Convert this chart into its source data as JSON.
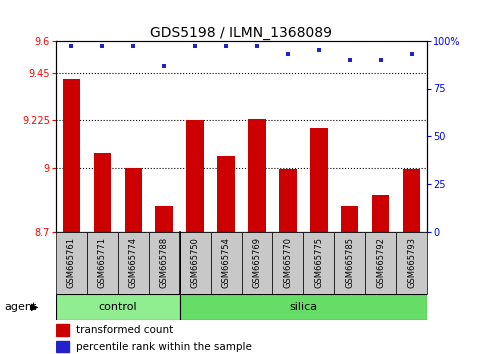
{
  "title": "GDS5198 / ILMN_1368089",
  "samples": [
    "GSM665761",
    "GSM665771",
    "GSM665774",
    "GSM665788",
    "GSM665750",
    "GSM665754",
    "GSM665769",
    "GSM665770",
    "GSM665775",
    "GSM665785",
    "GSM665792",
    "GSM665793"
  ],
  "transformed_counts": [
    9.42,
    9.07,
    9.0,
    8.82,
    9.225,
    9.055,
    9.23,
    8.998,
    9.19,
    8.82,
    8.875,
    8.998
  ],
  "percentile_ranks": [
    97,
    97,
    97,
    87,
    97,
    97,
    97,
    93,
    95,
    90,
    90,
    93
  ],
  "control_count": 4,
  "silica_count": 8,
  "ylim_left": [
    8.7,
    9.6
  ],
  "ylim_right": [
    0,
    100
  ],
  "yticks_left": [
    8.7,
    9.0,
    9.225,
    9.45,
    9.6
  ],
  "ytick_labels_left": [
    "8.7",
    "9",
    "9.225",
    "9.45",
    "9.6"
  ],
  "yticks_right": [
    0,
    25,
    50,
    75,
    100
  ],
  "ytick_labels_right": [
    "0",
    "25",
    "50",
    "75",
    "100%"
  ],
  "dotted_lines": [
    9.0,
    9.225,
    9.45
  ],
  "bar_color": "#cc0000",
  "dot_color": "#2222cc",
  "control_color": "#90ee90",
  "silica_color": "#66dd66",
  "bg_color": "#c8c8c8",
  "agent_label": "agent",
  "control_label": "control",
  "silica_label": "silica",
  "legend_bar_label": "transformed count",
  "legend_dot_label": "percentile rank within the sample",
  "title_fontsize": 10,
  "tick_fontsize": 7,
  "sample_fontsize": 6,
  "legend_fontsize": 7.5,
  "group_fontsize": 8,
  "agent_fontsize": 8
}
